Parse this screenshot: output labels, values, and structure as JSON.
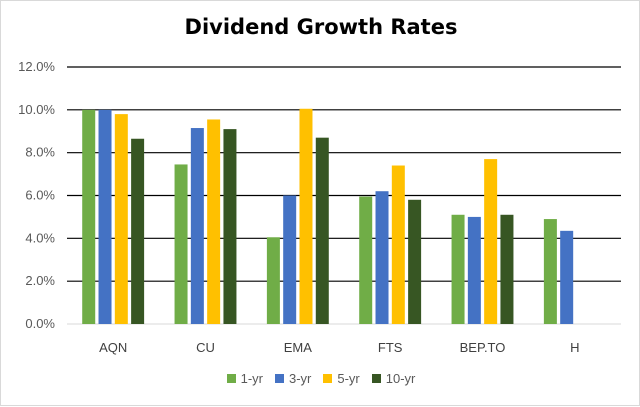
{
  "chart_data": {
    "type": "bar",
    "title": "Dividend Growth Rates",
    "categories": [
      "AQN",
      "CU",
      "EMA",
      "FTS",
      "BEP.TO",
      "H"
    ],
    "series": [
      {
        "name": "1-yr",
        "color": "#70AD47",
        "values": [
          10.0,
          7.45,
          4.05,
          5.95,
          5.1,
          4.9
        ]
      },
      {
        "name": "3-yr",
        "color": "#4472C4",
        "values": [
          10.0,
          9.15,
          6.0,
          6.2,
          5.0,
          4.35
        ]
      },
      {
        "name": "5-yr",
        "color": "#FFC000",
        "values": [
          9.8,
          9.55,
          10.05,
          7.4,
          7.7,
          0
        ]
      },
      {
        "name": "10-yr",
        "color": "#375623",
        "values": [
          8.65,
          9.1,
          8.7,
          5.8,
          5.1,
          0
        ]
      }
    ],
    "ylim": [
      0,
      12
    ],
    "yticks": [
      "0.0%",
      "2.0%",
      "4.0%",
      "6.0%",
      "8.0%",
      "10.0%",
      "12.0%"
    ],
    "xlabel": "",
    "ylabel": "",
    "grid": true,
    "legend": "bottom"
  }
}
